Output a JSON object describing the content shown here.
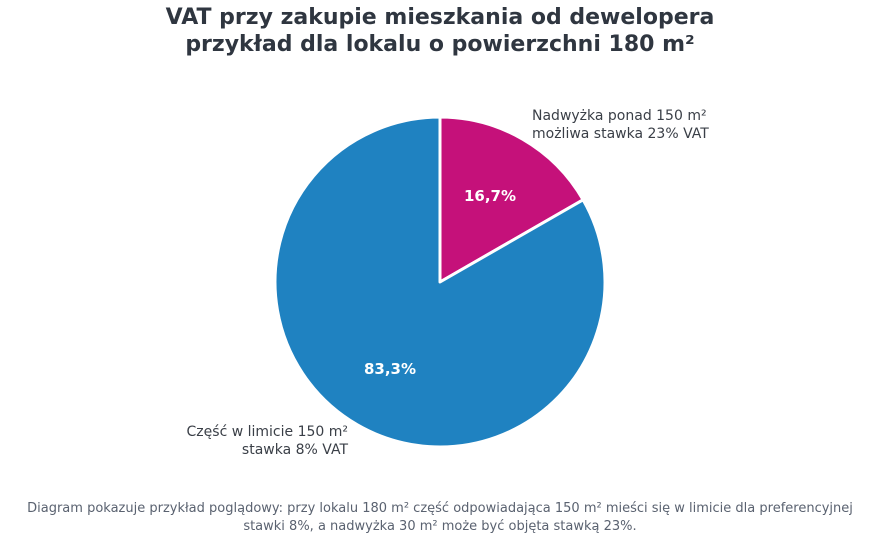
{
  "title": {
    "line1": "VAT przy zakupie mieszkania od dewelopera",
    "line2": "przykład dla lokalu o powierzchni 180 m²"
  },
  "chart_data": {
    "type": "pie",
    "slices": [
      {
        "label_line1": "Nadwyżka ponad 150 m²",
        "label_line2": "możliwa stawka 23% VAT",
        "value": 16.7,
        "pct_label": "16,7%",
        "color": "#c5117a"
      },
      {
        "label_line1": "Część w limicie 150 m²",
        "label_line2": "stawka 8% VAT",
        "value": 83.3,
        "pct_label": "83,3%",
        "color": "#1f82c1"
      }
    ]
  },
  "caption": {
    "line1": "Diagram pokazuje przykład poglądowy: przy lokalu 180 m² część odpowiadająca 150 m² mieści się w limicie dla preferencyjnej",
    "line2": "stawki 8%, a nadwyżka 30 m² może być objęta stawką 23%."
  }
}
